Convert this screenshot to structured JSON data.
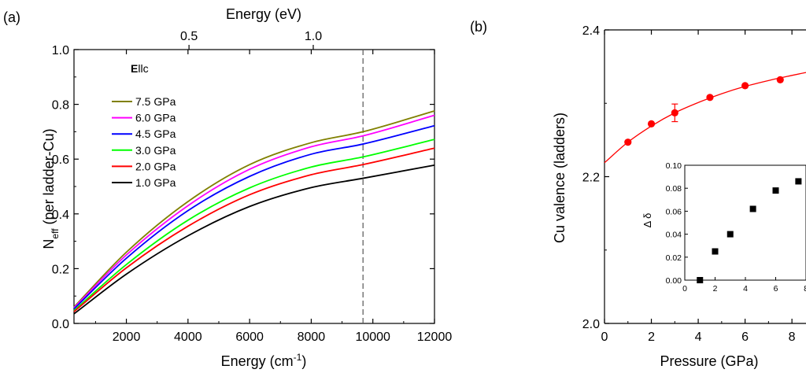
{
  "chart_data": [
    {
      "panel": "(a)",
      "type": "line",
      "xlabel": "Energy (cm",
      "xlabel_sup": "-1",
      "xlabel_end": ")",
      "ylabel_main": "N",
      "ylabel_sub": "eff",
      "ylabel_rest": " (per ladder-Cu)",
      "top_axis_label": "Energy (eV)",
      "top_ticks": [
        {
          "ev": 0.5,
          "label": "0.5"
        },
        {
          "ev": 1.0,
          "label": "1.0"
        }
      ],
      "xlim": [
        300,
        12000
      ],
      "ylim": [
        0,
        1.0
      ],
      "xticks": [
        2000,
        4000,
        6000,
        8000,
        10000,
        12000
      ],
      "xtick_labels": [
        "2000",
        "4000",
        "6000",
        "8000",
        "10000",
        "12000"
      ],
      "yticks": [
        0.0,
        0.2,
        0.4,
        0.6,
        0.8,
        1.0
      ],
      "ytick_labels": [
        "0.0",
        "0.2",
        "0.4",
        "0.6",
        "0.8",
        "1.0"
      ],
      "legend_title_bold": "E",
      "legend_title_rest": "llc",
      "legend_position": "upper-left",
      "vline_x": 9680,
      "x": [
        300,
        2000,
        4000,
        6000,
        8000,
        9680,
        12000
      ],
      "series": [
        {
          "name": "7.5 GPa",
          "color": "#808000",
          "values": [
            0.06,
            0.26,
            0.445,
            0.58,
            0.66,
            0.7,
            0.776
          ]
        },
        {
          "name": "6.0 GPa",
          "color": "#ff00ff",
          "values": [
            0.057,
            0.25,
            0.43,
            0.563,
            0.645,
            0.685,
            0.76
          ]
        },
        {
          "name": "4.5 GPa",
          "color": "#0000ff",
          "values": [
            0.053,
            0.238,
            0.412,
            0.537,
            0.618,
            0.655,
            0.722
          ]
        },
        {
          "name": "3.0 GPa",
          "color": "#00ff00",
          "values": [
            0.047,
            0.215,
            0.377,
            0.495,
            0.571,
            0.608,
            0.672
          ]
        },
        {
          "name": "2.0 GPa",
          "color": "#ff0000",
          "values": [
            0.043,
            0.203,
            0.355,
            0.47,
            0.543,
            0.58,
            0.64
          ]
        },
        {
          "name": "1.0 GPa",
          "color": "#000000",
          "values": [
            0.035,
            0.18,
            0.32,
            0.427,
            0.496,
            0.53,
            0.578
          ]
        }
      ]
    },
    {
      "panel": "(b)",
      "type": "scatter",
      "xlabel": "Pressure (GPa)",
      "ylabel": "Cu valence (ladders)",
      "xlim": [
        0,
        8.6
      ],
      "ylim": [
        2.0,
        2.4
      ],
      "xticks": [
        0,
        2,
        4,
        6,
        8
      ],
      "xtick_labels": [
        "0",
        "2",
        "4",
        "6",
        "8"
      ],
      "yticks": [
        2.0,
        2.2,
        2.4
      ],
      "ytick_labels": [
        "2.0",
        "2.2",
        "2.4"
      ],
      "marker_color": "#ff0000",
      "x": [
        1.0,
        2.0,
        3.0,
        4.5,
        6.0,
        7.5
      ],
      "y": [
        2.247,
        2.272,
        2.287,
        2.308,
        2.324,
        2.332
      ],
      "err": [
        0,
        0,
        0.012,
        0,
        0,
        0
      ],
      "fit_x": [
        0,
        1,
        2,
        3,
        4,
        5,
        6,
        7,
        8,
        8.6
      ],
      "fit_y": [
        2.219,
        2.247,
        2.269,
        2.287,
        2.301,
        2.313,
        2.323,
        2.331,
        2.338,
        2.342
      ],
      "inset": {
        "ylabel": "Δ δ",
        "xlim": [
          0,
          8
        ],
        "ylim": [
          0,
          0.1
        ],
        "xticks": [
          0,
          2,
          4,
          6,
          8
        ],
        "xtick_labels": [
          "0",
          "2",
          "4",
          "6",
          "8"
        ],
        "yticks": [
          0,
          0.02,
          0.04,
          0.06,
          0.08,
          0.1
        ],
        "ytick_labels": [
          "0.00",
          "0.02",
          "0.04",
          "0.06",
          "0.08",
          "0.10"
        ],
        "x": [
          1.0,
          2.0,
          3.0,
          4.5,
          6.0,
          7.5
        ],
        "y": [
          0.0,
          0.025,
          0.04,
          0.062,
          0.078,
          0.086
        ]
      }
    }
  ]
}
